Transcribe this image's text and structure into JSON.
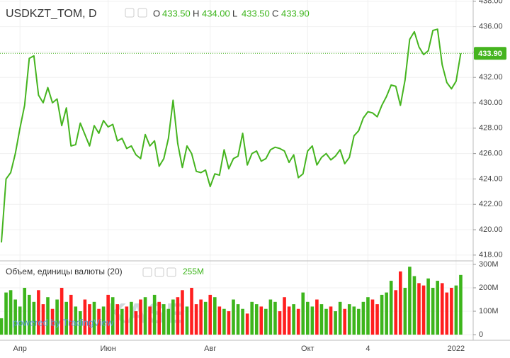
{
  "chart_data": [
    {
      "type": "line",
      "title": "USDKZT_TOM, D",
      "ohlc": [
        {
          "label": "O",
          "value": "433.50"
        },
        {
          "label": "H",
          "value": "434.00"
        },
        {
          "label": "L",
          "value": "433.50"
        },
        {
          "label": "C",
          "value": "433.90"
        }
      ],
      "watermark": "KASE",
      "credit": "powered by TradingView",
      "categories": [
        null,
        null,
        null,
        null,
        "Апр",
        null,
        null,
        null,
        null,
        null,
        null,
        null,
        null,
        null,
        null,
        null,
        null,
        null,
        null,
        null,
        null,
        null,
        null,
        "Июн",
        null,
        null,
        null,
        null,
        null,
        null,
        null,
        null,
        null,
        null,
        null,
        null,
        null,
        null,
        null,
        null,
        null,
        null,
        null,
        null,
        null,
        "Авг",
        null,
        null,
        null,
        null,
        null,
        null,
        null,
        null,
        null,
        null,
        null,
        null,
        null,
        null,
        null,
        null,
        null,
        null,
        null,
        null,
        "Окт",
        null,
        null,
        null,
        null,
        null,
        null,
        null,
        null,
        null,
        null,
        null,
        null,
        "4",
        null,
        null,
        null,
        null,
        null,
        null,
        null,
        null,
        null,
        null,
        null,
        null,
        null,
        null,
        null,
        null,
        null,
        null,
        "2022",
        null
      ],
      "series": [
        {
          "color": "#45b41f",
          "values": [
            419.0,
            424.0,
            424.5,
            426.0,
            428.0,
            429.8,
            433.5,
            433.7,
            430.6,
            430.0,
            431.2,
            430.0,
            430.3,
            428.2,
            429.6,
            426.6,
            426.7,
            428.4,
            427.5,
            426.6,
            428.2,
            427.6,
            428.6,
            428.1,
            428.3,
            427.0,
            427.2,
            426.4,
            426.6,
            425.9,
            425.6,
            427.5,
            426.6,
            427.0,
            425.0,
            425.6,
            427.2,
            430.2,
            426.8,
            424.9,
            426.6,
            426.0,
            424.6,
            424.5,
            424.7,
            423.4,
            424.4,
            424.3,
            426.3,
            424.8,
            425.6,
            425.8,
            427.6,
            425.1,
            426.0,
            426.2,
            425.4,
            425.6,
            426.3,
            426.5,
            426.4,
            426.2,
            425.3,
            425.9,
            424.1,
            424.4,
            426.2,
            426.6,
            425.1,
            425.7,
            426.0,
            425.5,
            425.8,
            426.3,
            425.2,
            425.7,
            427.4,
            427.8,
            428.8,
            429.3,
            429.2,
            428.9,
            429.8,
            430.5,
            431.4,
            431.3,
            429.8,
            431.8,
            435.0,
            435.6,
            434.4,
            433.8,
            434.1,
            435.7,
            435.8,
            433.0,
            431.6,
            431.1,
            431.7,
            433.9
          ]
        }
      ],
      "ylim": [
        417.6,
        438.1
      ],
      "yticks": [
        {
          "value": 418,
          "label": "418.00"
        },
        {
          "value": 420,
          "label": "420.00"
        },
        {
          "value": 422,
          "label": "422.00"
        },
        {
          "value": 424,
          "label": "424.00"
        },
        {
          "value": 426,
          "label": "426.00"
        },
        {
          "value": 428,
          "label": "428.00"
        },
        {
          "value": 430,
          "label": "430.00"
        },
        {
          "value": 432,
          "label": "432.00"
        },
        {
          "value": 434,
          "label": "434.00"
        },
        {
          "value": 436,
          "label": "436.00"
        },
        {
          "value": 438,
          "label": "438.00"
        }
      ],
      "grid": true
    },
    {
      "type": "bar",
      "title": "Объем, единицы валюты (20)",
      "current": {
        "value": 255,
        "label": "255M"
      },
      "up_color": "#3db51c",
      "down_color": "#ff1f1f",
      "values": [
        70,
        180,
        190,
        150,
        120,
        200,
        170,
        140,
        190,
        130,
        160,
        110,
        150,
        200,
        140,
        170,
        120,
        100,
        150,
        130,
        140,
        110,
        120,
        170,
        160,
        130,
        110,
        120,
        140,
        100,
        150,
        160,
        120,
        170,
        140,
        130,
        110,
        150,
        160,
        190,
        120,
        200,
        130,
        150,
        140,
        170,
        160,
        120,
        110,
        100,
        150,
        130,
        110,
        90,
        140,
        130,
        120,
        110,
        150,
        140,
        100,
        160,
        120,
        130,
        110,
        180,
        140,
        120,
        150,
        130,
        110,
        120,
        100,
        140,
        110,
        130,
        120,
        110,
        140,
        160,
        150,
        130,
        170,
        180,
        230,
        190,
        270,
        200,
        290,
        250,
        220,
        210,
        240,
        200,
        230,
        220,
        180,
        200,
        210,
        255
      ],
      "ylim": [
        -18,
        312
      ],
      "yticks": [
        0,
        {
          "value": 100,
          "label": "100M"
        },
        {
          "value": 200,
          "label": "200M"
        },
        {
          "value": 300,
          "label": "300M"
        }
      ],
      "grid": true
    }
  ]
}
